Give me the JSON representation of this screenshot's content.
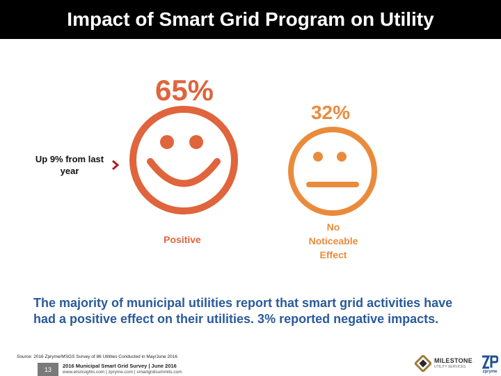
{
  "header": {
    "title": "Impact of Smart Grid Program on Utility"
  },
  "results": [
    {
      "percent": "65%",
      "label": "Positive",
      "icon": "smiley-face-icon",
      "color": "#e0643c"
    },
    {
      "percent": "32%",
      "label": "No\nNoticeable\nEffect",
      "icon": "neutral-face-icon",
      "color": "#ea8b3c"
    }
  ],
  "annotation": {
    "text": "Up 9% from last year",
    "icon": "chevron-right-icon",
    "color": "#b01c1c"
  },
  "summary": "The majority of municipal utilities report that smart grid activities have had a positive effect on their utilities. 3% reported negative impacts.",
  "footer": {
    "source": "Source: 2016 Zpryme/MSGS Survey of 86 Utilities Conducted in May/June 2016",
    "page_number": "13",
    "survey_title": "2016 Municipal Smart Grid Survey | June 2016",
    "links": "www.etsinsights.com | zpryme.com | smartgridsummits.com",
    "logos": {
      "milestone_name": "MILESTONE",
      "milestone_sub": "UTILITY SERVICES",
      "zpryme_name": "zpryme"
    }
  }
}
